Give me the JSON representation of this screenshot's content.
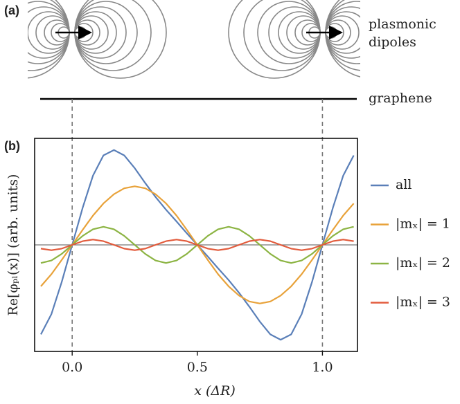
{
  "panel_a": {
    "label": "(a)",
    "annotations": [
      "plasmonic",
      "dipoles"
    ],
    "substrate": "graphene"
  },
  "chart_data": {
    "type": "line",
    "panel_label": "(b)",
    "xlabel": "x (ΔR)",
    "ylabel": "Re[φₚₗ(x)] (arb. units)",
    "x": [
      -0.125,
      -0.083,
      -0.042,
      0,
      0.042,
      0.083,
      0.125,
      0.167,
      0.208,
      0.25,
      0.292,
      0.333,
      0.375,
      0.417,
      0.458,
      0.5,
      0.542,
      0.583,
      0.625,
      0.667,
      0.708,
      0.75,
      0.792,
      0.833,
      0.875,
      0.917,
      0.958,
      1,
      1.042,
      1.083,
      1.125
    ],
    "series": [
      {
        "name": "all",
        "color": "#5a7fb8",
        "values": [
          -0.84,
          -0.65,
          -0.35,
          0,
          0.35,
          0.65,
          0.84,
          0.89,
          0.84,
          0.72,
          0.58,
          0.45,
          0.33,
          0.22,
          0.11,
          0,
          -0.11,
          -0.22,
          -0.33,
          -0.45,
          -0.58,
          -0.72,
          -0.84,
          -0.89,
          -0.84,
          -0.65,
          -0.35,
          0,
          0.35,
          0.65,
          0.84
        ]
      },
      {
        "name": "|mₓ| = 1",
        "color": "#e8a23a",
        "values": [
          -0.389,
          -0.275,
          -0.142,
          0,
          0.142,
          0.275,
          0.389,
          0.476,
          0.531,
          0.55,
          0.531,
          0.476,
          0.389,
          0.275,
          0.142,
          0,
          -0.142,
          -0.275,
          -0.389,
          -0.476,
          -0.531,
          -0.55,
          -0.531,
          -0.476,
          -0.389,
          -0.275,
          -0.142,
          0,
          0.142,
          0.275,
          0.389
        ]
      },
      {
        "name": "|mₓ| = 2",
        "color": "#8cb443",
        "values": [
          -0.17,
          -0.147,
          -0.085,
          0,
          0.085,
          0.147,
          0.17,
          0.147,
          0.085,
          0,
          -0.085,
          -0.147,
          -0.17,
          -0.147,
          -0.085,
          0,
          0.085,
          0.147,
          0.17,
          0.147,
          0.085,
          0,
          -0.085,
          -0.147,
          -0.17,
          -0.147,
          -0.085,
          0,
          0.085,
          0.147,
          0.17
        ]
      },
      {
        "name": "|mₓ| = 3",
        "color": "#e25b3c",
        "values": [
          -0.035,
          -0.05,
          -0.035,
          0,
          0.035,
          0.05,
          0.035,
          0,
          -0.035,
          -0.05,
          -0.035,
          0,
          0.035,
          0.05,
          0.035,
          0,
          -0.035,
          -0.05,
          -0.035,
          0,
          0.035,
          0.05,
          0.035,
          0,
          -0.035,
          -0.05,
          -0.035,
          0,
          0.035,
          0.05,
          0.035
        ]
      }
    ],
    "xlim": [
      -0.15,
      1.14
    ],
    "ylim": [
      -1,
      1
    ],
    "xticks": [
      {
        "value": 0,
        "label": "0.0"
      },
      {
        "value": 0.5,
        "label": "0.5"
      },
      {
        "value": 1,
        "label": "1.0"
      }
    ],
    "hlines": [
      0
    ],
    "vlines": [
      0,
      1
    ],
    "legend": "right"
  }
}
